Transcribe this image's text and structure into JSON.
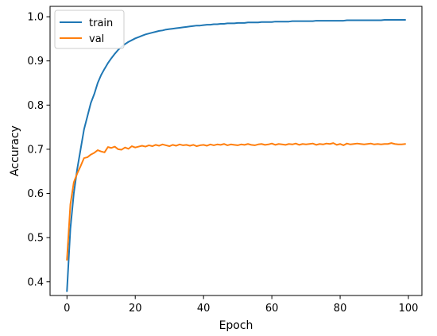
{
  "chart_data": {
    "type": "line",
    "title": "",
    "xlabel": "Epoch",
    "ylabel": "Accuracy",
    "xlim": [
      -4.95,
      103.95
    ],
    "ylim": [
      0.369,
      1.0235
    ],
    "xticks": [
      0,
      20,
      40,
      60,
      80,
      100
    ],
    "yticks": [
      0.4,
      0.5,
      0.6,
      0.7,
      0.8,
      0.9,
      1.0
    ],
    "xtick_labels": [
      "0",
      "20",
      "40",
      "60",
      "80",
      "100"
    ],
    "ytick_labels": [
      "0.4",
      "0.5",
      "0.6",
      "0.7",
      "0.8",
      "0.9",
      "1.0"
    ],
    "grid": false,
    "legend_position": "upper-left",
    "x": [
      0,
      1,
      2,
      3,
      4,
      5,
      6,
      7,
      8,
      9,
      10,
      11,
      12,
      13,
      14,
      15,
      16,
      17,
      18,
      19,
      20,
      21,
      22,
      23,
      24,
      25,
      26,
      27,
      28,
      29,
      30,
      31,
      32,
      33,
      34,
      35,
      36,
      37,
      38,
      39,
      40,
      41,
      42,
      43,
      44,
      45,
      46,
      47,
      48,
      49,
      50,
      51,
      52,
      53,
      54,
      55,
      56,
      57,
      58,
      59,
      60,
      61,
      62,
      63,
      64,
      65,
      66,
      67,
      68,
      69,
      70,
      71,
      72,
      73,
      74,
      75,
      76,
      77,
      78,
      79,
      80,
      81,
      82,
      83,
      84,
      85,
      86,
      87,
      88,
      89,
      90,
      91,
      92,
      93,
      94,
      95,
      96,
      97,
      98,
      99
    ],
    "series": [
      {
        "name": "train",
        "color": "#1f77b4",
        "values": [
          0.379,
          0.52,
          0.6,
          0.655,
          0.7,
          0.745,
          0.775,
          0.805,
          0.825,
          0.85,
          0.868,
          0.882,
          0.895,
          0.906,
          0.916,
          0.925,
          0.932,
          0.938,
          0.943,
          0.947,
          0.951,
          0.954,
          0.957,
          0.96,
          0.962,
          0.964,
          0.966,
          0.968,
          0.969,
          0.971,
          0.972,
          0.973,
          0.974,
          0.975,
          0.976,
          0.977,
          0.978,
          0.979,
          0.98,
          0.98,
          0.981,
          0.982,
          0.982,
          0.983,
          0.983,
          0.984,
          0.984,
          0.985,
          0.985,
          0.985,
          0.986,
          0.986,
          0.986,
          0.987,
          0.987,
          0.987,
          0.987,
          0.988,
          0.988,
          0.988,
          0.988,
          0.989,
          0.989,
          0.989,
          0.989,
          0.989,
          0.99,
          0.99,
          0.99,
          0.99,
          0.99,
          0.99,
          0.99,
          0.991,
          0.991,
          0.991,
          0.991,
          0.991,
          0.991,
          0.991,
          0.991,
          0.991,
          0.992,
          0.992,
          0.992,
          0.992,
          0.992,
          0.992,
          0.992,
          0.992,
          0.992,
          0.992,
          0.992,
          0.993,
          0.993,
          0.993,
          0.993,
          0.993,
          0.993,
          0.993
        ]
      },
      {
        "name": "val",
        "color": "#ff7f0e",
        "values": [
          0.45,
          0.575,
          0.625,
          0.645,
          0.662,
          0.68,
          0.682,
          0.688,
          0.692,
          0.698,
          0.695,
          0.693,
          0.705,
          0.703,
          0.706,
          0.7,
          0.699,
          0.704,
          0.701,
          0.707,
          0.704,
          0.706,
          0.708,
          0.706,
          0.709,
          0.707,
          0.71,
          0.708,
          0.711,
          0.709,
          0.707,
          0.71,
          0.708,
          0.711,
          0.709,
          0.71,
          0.708,
          0.71,
          0.707,
          0.709,
          0.71,
          0.708,
          0.711,
          0.709,
          0.711,
          0.71,
          0.712,
          0.709,
          0.711,
          0.71,
          0.709,
          0.711,
          0.71,
          0.712,
          0.71,
          0.709,
          0.711,
          0.712,
          0.71,
          0.711,
          0.713,
          0.71,
          0.712,
          0.711,
          0.71,
          0.712,
          0.711,
          0.713,
          0.71,
          0.712,
          0.711,
          0.712,
          0.713,
          0.71,
          0.712,
          0.711,
          0.713,
          0.712,
          0.714,
          0.71,
          0.712,
          0.709,
          0.713,
          0.711,
          0.712,
          0.713,
          0.712,
          0.711,
          0.712,
          0.713,
          0.711,
          0.712,
          0.711,
          0.712,
          0.712,
          0.714,
          0.712,
          0.711,
          0.711,
          0.712
        ]
      }
    ]
  }
}
